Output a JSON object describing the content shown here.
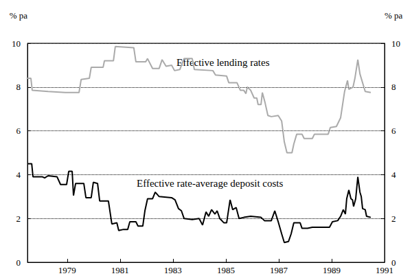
{
  "chart_data": {
    "type": "line",
    "ylabel": "% pa",
    "y2label": "% pa",
    "xlim": [
      1977.5,
      1991
    ],
    "xticks": [
      1979,
      1981,
      1983,
      1985,
      1987,
      1989,
      1991
    ],
    "ylim": [
      0,
      10
    ],
    "yticks": [
      0,
      2,
      4,
      6,
      8,
      10
    ],
    "y2lim": [
      0,
      10
    ],
    "y2ticks": [
      0,
      2,
      4,
      6,
      8,
      10
    ],
    "grid": true,
    "series": [
      {
        "name": "Effective lending rates",
        "color": "#aaaaaa",
        "x": [
          1977.5,
          1977.63,
          1977.68,
          1978.28,
          1978.93,
          1979.45,
          1979.53,
          1979.84,
          1979.91,
          1980.36,
          1980.41,
          1980.75,
          1980.82,
          1981.52,
          1981.6,
          1981.97,
          1982.04,
          1982.23,
          1982.48,
          1982.59,
          1982.74,
          1982.95,
          1983.06,
          1983.26,
          1983.42,
          1983.73,
          1983.81,
          1984.51,
          1984.61,
          1985.03,
          1985.11,
          1985.42,
          1985.55,
          1985.68,
          1985.76,
          1985.81,
          1985.94,
          1986.07,
          1986.17,
          1986.22,
          1986.33,
          1986.38,
          1986.48,
          1986.59,
          1986.72,
          1986.98,
          1987.11,
          1987.21,
          1987.31,
          1987.5,
          1987.57,
          1987.68,
          1987.88,
          1987.96,
          1988.27,
          1988.35,
          1988.87,
          1988.95,
          1989.18,
          1989.34,
          1989.49,
          1989.6,
          1989.65,
          1989.81,
          1989.88,
          1989.99,
          1990.07,
          1990.17,
          1990.27,
          1990.48
        ],
        "values": [
          8.4,
          8.4,
          7.85,
          7.8,
          7.75,
          7.75,
          8.35,
          8.4,
          8.9,
          8.9,
          9.2,
          9.2,
          9.85,
          9.8,
          9.15,
          9.15,
          9.3,
          8.85,
          8.85,
          9.25,
          8.95,
          9.0,
          8.75,
          8.8,
          9.3,
          9.3,
          8.8,
          8.75,
          8.55,
          8.5,
          8.2,
          8.2,
          7.85,
          7.85,
          7.7,
          8.0,
          7.85,
          7.5,
          7.5,
          7.2,
          7.2,
          7.75,
          7.3,
          6.7,
          6.65,
          6.7,
          6.45,
          5.5,
          5.0,
          5.0,
          5.4,
          5.85,
          5.85,
          5.65,
          5.65,
          5.85,
          5.85,
          6.15,
          6.2,
          6.6,
          7.8,
          8.3,
          7.9,
          8.0,
          8.4,
          9.25,
          8.6,
          8.2,
          7.8,
          7.75
        ]
      },
      {
        "name": "Effective rate-average deposit costs",
        "color": "#000000",
        "x": [
          1977.5,
          1977.66,
          1977.71,
          1978.07,
          1978.15,
          1978.28,
          1978.62,
          1978.75,
          1978.98,
          1979.06,
          1979.19,
          1979.24,
          1979.32,
          1979.63,
          1979.71,
          1979.91,
          1979.99,
          1980.15,
          1980.23,
          1980.56,
          1980.69,
          1980.88,
          1980.95,
          1981.13,
          1981.29,
          1981.37,
          1981.6,
          1981.68,
          1981.86,
          1981.94,
          1982.04,
          1982.23,
          1982.33,
          1982.48,
          1982.95,
          1983.08,
          1983.21,
          1983.32,
          1983.42,
          1983.73,
          1983.99,
          1984.12,
          1984.25,
          1984.35,
          1984.46,
          1984.59,
          1984.67,
          1984.77,
          1984.93,
          1985.03,
          1985.16,
          1985.26,
          1985.39,
          1985.5,
          1985.68,
          1985.94,
          1986.33,
          1986.46,
          1986.72,
          1986.85,
          1986.98,
          1987.11,
          1987.21,
          1987.37,
          1987.47,
          1987.57,
          1987.81,
          1987.88,
          1988.09,
          1988.27,
          1988.92,
          1989.03,
          1989.23,
          1989.34,
          1989.44,
          1989.52,
          1989.57,
          1989.65,
          1989.73,
          1989.79,
          1989.83,
          1989.91,
          1989.99,
          1990.07,
          1990.12,
          1990.17,
          1990.27,
          1990.32,
          1990.48
        ],
        "values": [
          4.5,
          4.5,
          3.9,
          3.9,
          3.85,
          3.95,
          3.9,
          3.55,
          3.55,
          4.15,
          4.15,
          3.05,
          3.6,
          3.6,
          2.95,
          2.95,
          3.65,
          3.6,
          2.8,
          2.8,
          1.75,
          1.8,
          1.45,
          1.5,
          1.5,
          1.85,
          1.85,
          1.65,
          1.65,
          2.35,
          2.9,
          2.9,
          3.2,
          3.0,
          2.95,
          2.85,
          2.45,
          2.35,
          2.0,
          1.95,
          2.0,
          1.7,
          2.3,
          2.1,
          2.4,
          2.2,
          2.35,
          2.0,
          1.8,
          1.8,
          2.85,
          2.4,
          2.5,
          2.0,
          2.05,
          2.1,
          2.05,
          1.9,
          1.9,
          2.35,
          1.85,
          1.3,
          0.9,
          0.95,
          1.3,
          1.8,
          1.8,
          1.55,
          1.55,
          1.6,
          1.6,
          1.85,
          1.9,
          2.1,
          2.4,
          2.2,
          2.9,
          3.3,
          2.9,
          2.85,
          2.55,
          2.9,
          3.9,
          3.2,
          3.0,
          2.45,
          2.4,
          2.1,
          2.05
        ]
      }
    ]
  }
}
